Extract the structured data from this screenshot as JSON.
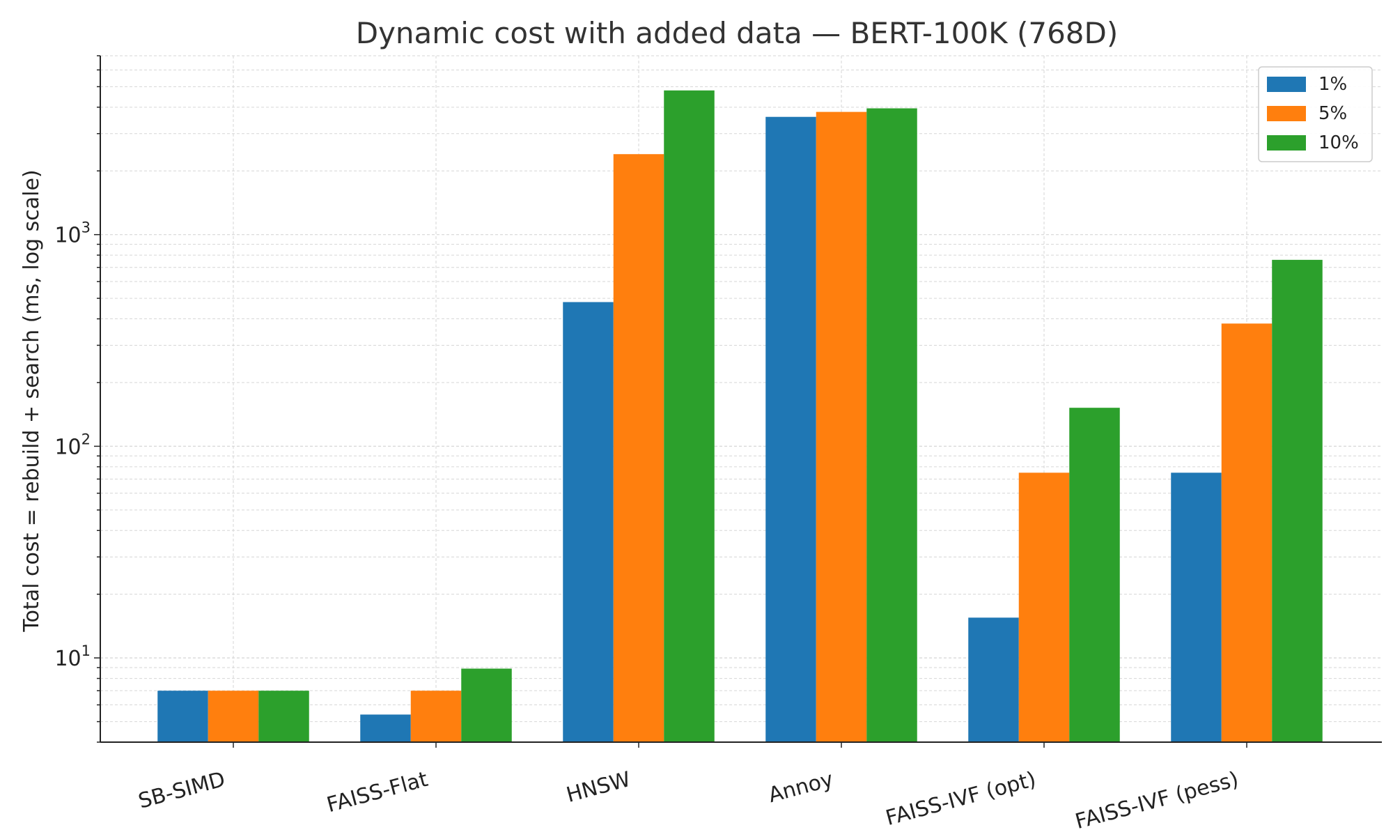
{
  "chart_data": {
    "type": "bar",
    "title": "Dynamic cost with added data — BERT-100K (768D)",
    "xlabel": "",
    "ylabel": "Total cost = rebuild + search (ms, log scale)",
    "yscale": "log",
    "ylim": [
      4,
      7000
    ],
    "major_ticks": [
      {
        "value": 10,
        "base": "10",
        "exp": "1"
      },
      {
        "value": 100,
        "base": "10",
        "exp": "2"
      },
      {
        "value": 1000,
        "base": "10",
        "exp": "3"
      }
    ],
    "grid": true,
    "legend_position": "top-right",
    "categories": [
      "SB-SIMD",
      "FAISS-Flat",
      "HNSW",
      "Annoy",
      "FAISS-IVF (opt)",
      "FAISS-IVF (pess)"
    ],
    "series": [
      {
        "name": "1%",
        "color": "#1f77b4",
        "values": [
          7,
          5.4,
          480,
          3600,
          15.5,
          75
        ]
      },
      {
        "name": "5%",
        "color": "#ff7f0e",
        "values": [
          7,
          7,
          2400,
          3800,
          75,
          380
        ]
      },
      {
        "name": "10%",
        "color": "#2ca02c",
        "values": [
          7,
          8.9,
          4800,
          3950,
          152,
          760
        ]
      }
    ]
  }
}
